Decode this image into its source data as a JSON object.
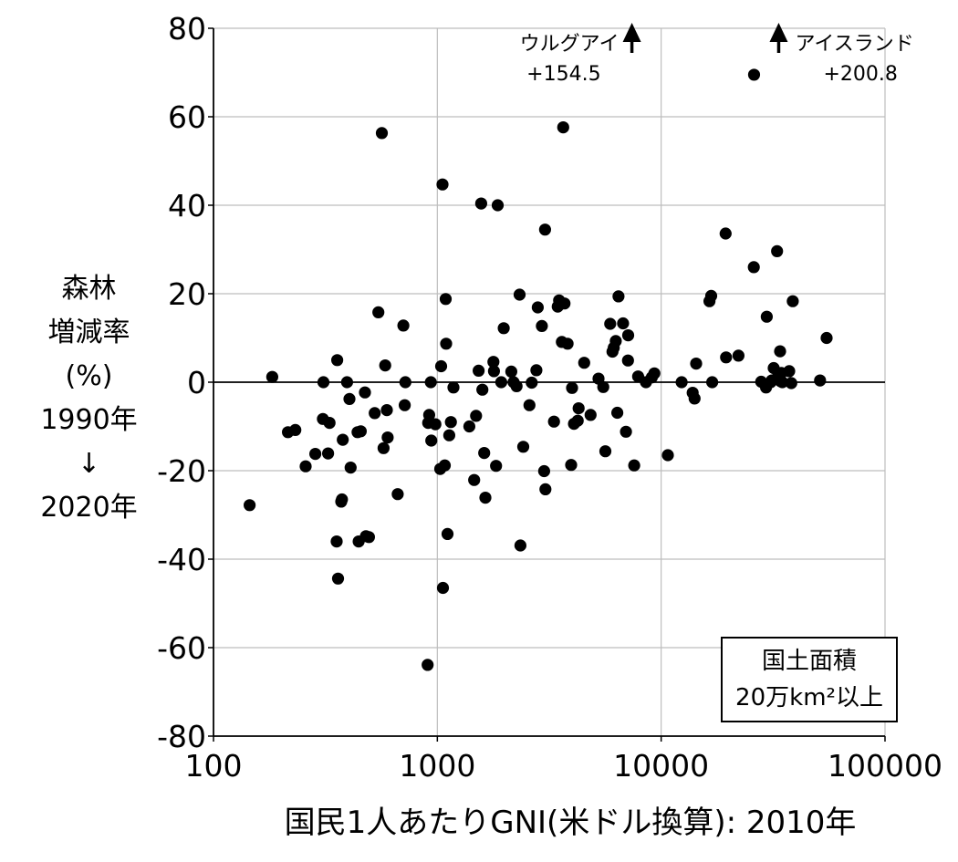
{
  "chart_data": {
    "type": "scatter",
    "xlabel": "国民1人あたりGNI(米ドル換算): 2010年",
    "ylabel_lines": [
      "森林",
      "増減率",
      "(%)",
      "1990年",
      "↓",
      "2020年"
    ],
    "x_scale": "log",
    "xlim": [
      100,
      100000
    ],
    "ylim": [
      -80,
      80
    ],
    "x_ticks": [
      "100",
      "1000",
      "10000",
      "100000"
    ],
    "y_ticks": [
      "80",
      "60",
      "40",
      "20",
      "0",
      "-20",
      "-40",
      "-60",
      "-80"
    ],
    "grid": true,
    "filter_note_lines": [
      "国土面積",
      "20万km²以上"
    ],
    "offscale": [
      {
        "name": "ウルグアイ",
        "value": "+154.5",
        "x": 7400
      },
      {
        "name": "アイスランド",
        "value": "+200.8",
        "x": 26000
      }
    ],
    "points": [
      [
        145,
        -27.8
      ],
      [
        183,
        1.2
      ],
      [
        215,
        -11.3
      ],
      [
        232,
        -10.8
      ],
      [
        258,
        -19.0
      ],
      [
        285,
        -16.2
      ],
      [
        308,
        -8.3
      ],
      [
        310,
        0.0
      ],
      [
        325,
        -16.1
      ],
      [
        330,
        -9.2
      ],
      [
        355,
        -36.0
      ],
      [
        357,
        5.0
      ],
      [
        360,
        -44.4
      ],
      [
        372,
        -27.0
      ],
      [
        375,
        -26.5
      ],
      [
        378,
        -13.0
      ],
      [
        395,
        0.0
      ],
      [
        405,
        -3.8
      ],
      [
        410,
        -19.3
      ],
      [
        440,
        -11.3
      ],
      [
        445,
        -36.0
      ],
      [
        455,
        -11.1
      ],
      [
        475,
        -2.3
      ],
      [
        480,
        -34.8
      ],
      [
        495,
        -35.0
      ],
      [
        525,
        -7.0
      ],
      [
        545,
        15.8
      ],
      [
        565,
        56.3
      ],
      [
        575,
        -14.9
      ],
      [
        585,
        3.8
      ],
      [
        595,
        -6.3
      ],
      [
        600,
        -12.5
      ],
      [
        665,
        -25.3
      ],
      [
        705,
        12.8
      ],
      [
        715,
        -5.2
      ],
      [
        720,
        0.0
      ],
      [
        905,
        -63.9
      ],
      [
        910,
        -9.2
      ],
      [
        920,
        -7.4
      ],
      [
        935,
        0.0
      ],
      [
        940,
        -13.2
      ],
      [
        980,
        -9.5
      ],
      [
        1030,
        -19.6
      ],
      [
        1040,
        3.6
      ],
      [
        1055,
        44.7
      ],
      [
        1060,
        -46.5
      ],
      [
        1080,
        -18.8
      ],
      [
        1090,
        18.8
      ],
      [
        1095,
        8.7
      ],
      [
        1110,
        -34.3
      ],
      [
        1130,
        -12.0
      ],
      [
        1150,
        -9.0
      ],
      [
        1180,
        -1.2
      ],
      [
        1390,
        -10.0
      ],
      [
        1460,
        -22.1
      ],
      [
        1490,
        -7.6
      ],
      [
        1530,
        2.6
      ],
      [
        1570,
        40.4
      ],
      [
        1590,
        -1.7
      ],
      [
        1620,
        -16.0
      ],
      [
        1640,
        -26.1
      ],
      [
        1780,
        4.6
      ],
      [
        1790,
        2.5
      ],
      [
        1830,
        -18.9
      ],
      [
        1860,
        40.0
      ],
      [
        1930,
        0.0
      ],
      [
        1980,
        12.2
      ],
      [
        2140,
        2.4
      ],
      [
        2190,
        0.0
      ],
      [
        2260,
        -0.9
      ],
      [
        2330,
        19.8
      ],
      [
        2350,
        -36.9
      ],
      [
        2420,
        -14.6
      ],
      [
        2580,
        -5.2
      ],
      [
        2640,
        -0.1
      ],
      [
        2770,
        2.7
      ],
      [
        2810,
        16.9
      ],
      [
        2930,
        12.7
      ],
      [
        3000,
        -20.1
      ],
      [
        3030,
        34.5
      ],
      [
        3040,
        -24.2
      ],
      [
        3320,
        -8.9
      ],
      [
        3450,
        17.1
      ],
      [
        3500,
        18.5
      ],
      [
        3600,
        9.1
      ],
      [
        3650,
        57.6
      ],
      [
        3700,
        17.8
      ],
      [
        3820,
        8.7
      ],
      [
        3960,
        -18.7
      ],
      [
        4000,
        -1.3
      ],
      [
        4080,
        -9.4
      ],
      [
        4240,
        -8.7
      ],
      [
        4280,
        -5.9
      ],
      [
        4530,
        4.4
      ],
      [
        4840,
        -7.4
      ],
      [
        5250,
        0.8
      ],
      [
        5510,
        -1.1
      ],
      [
        5630,
        -15.6
      ],
      [
        5920,
        13.2
      ],
      [
        6060,
        6.9
      ],
      [
        6140,
        7.8
      ],
      [
        6270,
        9.3
      ],
      [
        6370,
        -6.9
      ],
      [
        6450,
        19.4
      ],
      [
        6760,
        13.3
      ],
      [
        6960,
        -11.2
      ],
      [
        7110,
        4.9
      ],
      [
        7120,
        10.6
      ],
      [
        7580,
        -18.8
      ],
      [
        7890,
        1.3
      ],
      [
        8550,
        0.0
      ],
      [
        9080,
        1.1
      ],
      [
        9320,
        2.0
      ],
      [
        10710,
        -16.5
      ],
      [
        12340,
        0.0
      ],
      [
        13830,
        -2.4
      ],
      [
        14100,
        -3.7
      ],
      [
        14330,
        4.2
      ],
      [
        16440,
        18.3
      ],
      [
        16730,
        19.5
      ],
      [
        16910,
        0.0
      ],
      [
        19410,
        33.6
      ],
      [
        19500,
        5.6
      ],
      [
        22160,
        6.0
      ],
      [
        25930,
        26.0
      ],
      [
        27990,
        0.1
      ],
      [
        29420,
        -1.2
      ],
      [
        29630,
        14.8
      ],
      [
        30850,
        0.0
      ],
      [
        31210,
        0.4
      ],
      [
        31830,
        3.2
      ],
      [
        32940,
        29.6
      ],
      [
        33400,
        1.8
      ],
      [
        33990,
        7.0
      ],
      [
        34190,
        0.2
      ],
      [
        34430,
        2.1
      ],
      [
        34800,
        0.0
      ],
      [
        37310,
        2.5
      ],
      [
        38130,
        -0.2
      ],
      [
        38700,
        18.3
      ],
      [
        51270,
        0.4
      ],
      [
        54830,
        10.0
      ]
    ]
  }
}
